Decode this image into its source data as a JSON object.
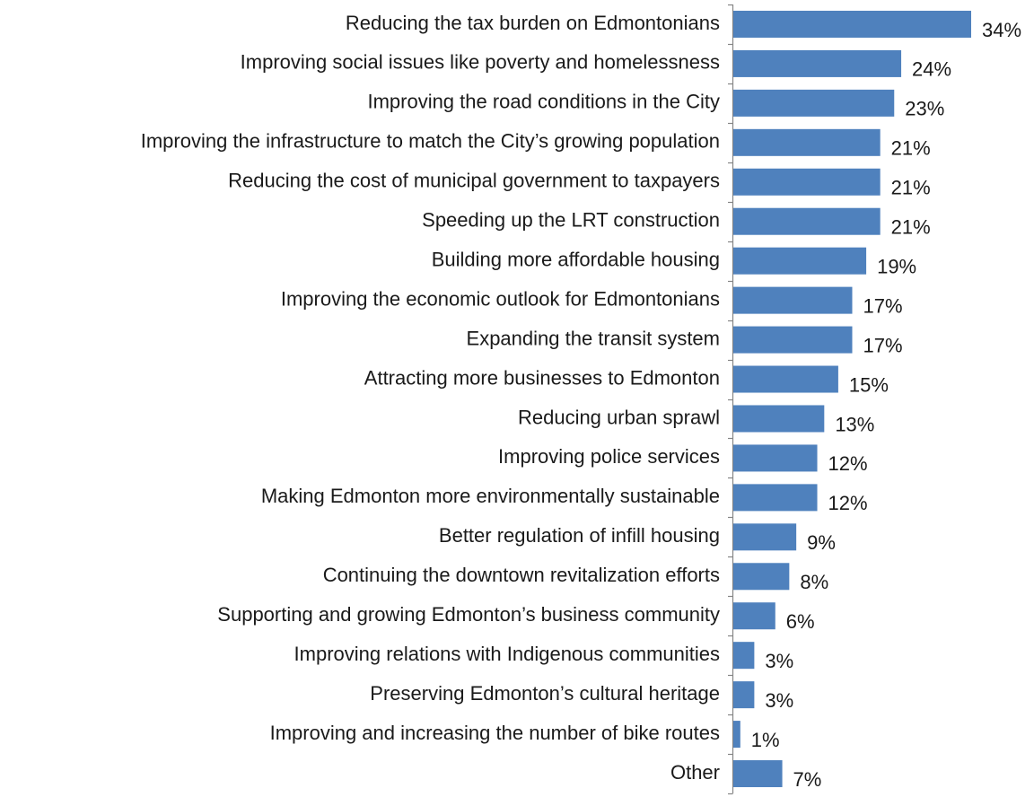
{
  "chart_data": {
    "type": "bar",
    "orientation": "horizontal",
    "categories": [
      "Reducing the tax burden on Edmontonians",
      "Improving social issues like poverty and homelessness",
      "Improving the road conditions in the City",
      "Improving the infrastructure to match the City’s growing population",
      "Reducing the cost of municipal government to taxpayers",
      "Speeding up the LRT construction",
      "Building more affordable housing",
      "Improving the economic outlook for Edmontonians",
      "Expanding the transit system",
      "Attracting more businesses to Edmonton",
      "Reducing urban sprawl",
      "Improving police services",
      "Making Edmonton more environmentally sustainable",
      "Better regulation of infill housing",
      "Continuing the downtown revitalization efforts",
      "Supporting and growing Edmonton’s business community",
      "Improving relations with Indigenous communities",
      "Preserving Edmonton’s cultural heritage",
      "Improving and increasing the number of bike routes",
      "Other"
    ],
    "values": [
      34,
      24,
      23,
      21,
      21,
      21,
      19,
      17,
      17,
      15,
      13,
      12,
      12,
      9,
      8,
      6,
      3,
      3,
      1,
      7
    ],
    "value_labels": [
      "34%",
      "24%",
      "23%",
      "21%",
      "21%",
      "21%",
      "19%",
      "17%",
      "17%",
      "15%",
      "13%",
      "12%",
      "12%",
      "9%",
      "8%",
      "6%",
      "3%",
      "3%",
      "1%",
      "7%"
    ],
    "unit": "%",
    "title": "",
    "xlabel": "",
    "ylabel": "",
    "xlim": [
      0,
      34
    ],
    "grid": false,
    "legend": "none",
    "bar_color": "#4F81BD",
    "axis_color": "#868686"
  }
}
